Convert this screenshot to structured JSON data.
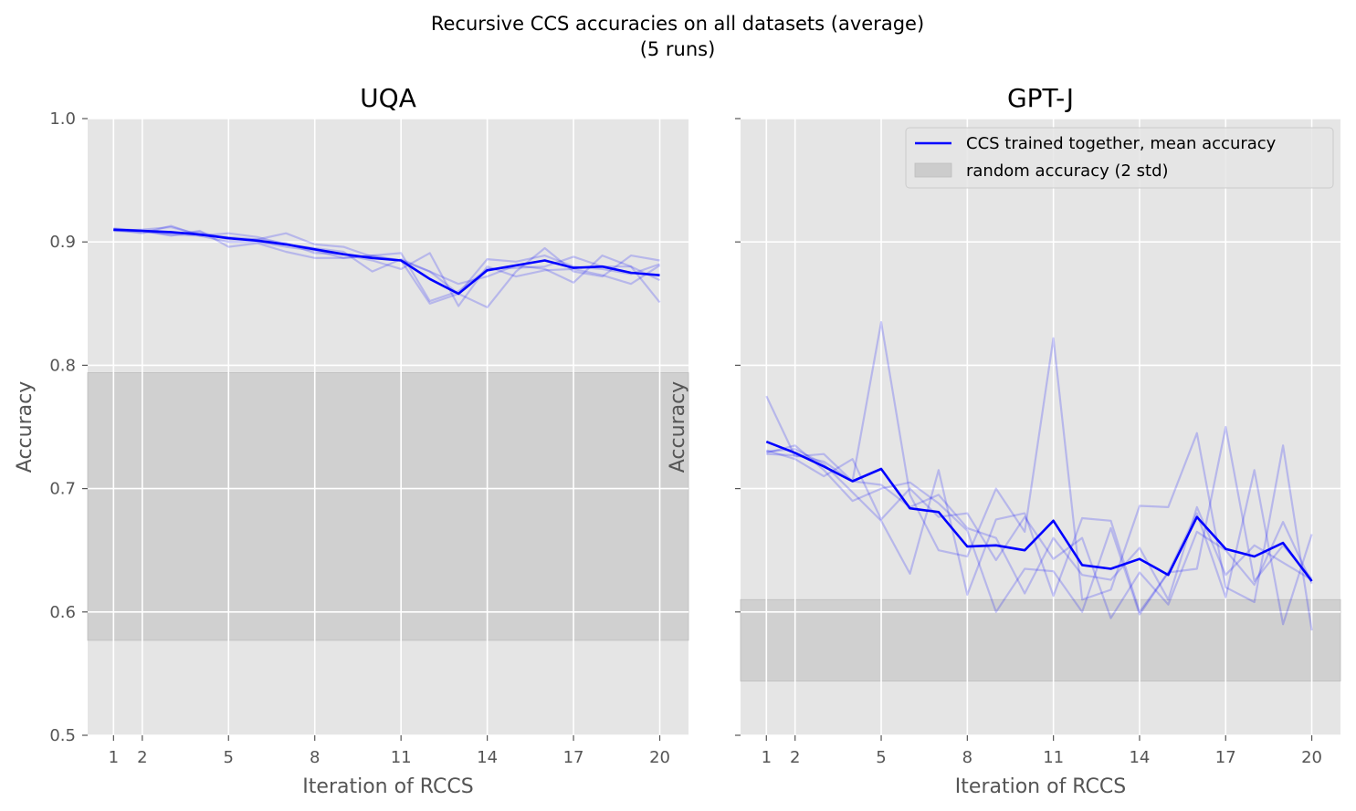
{
  "suptitle_line1": "Recursive CCS accuracies on all datasets (average)",
  "suptitle_line2": "(5 runs)",
  "colors": {
    "panel_bg": "#e5e5e5",
    "grid": "#ffffff",
    "band": "#cccccc",
    "mean_line": "#0000ff",
    "run_line": "#0000ff",
    "text": "#555555",
    "title": "#000000"
  },
  "legend": {
    "mean_label": "CCS trained together, mean accuracy",
    "band_label": "random accuracy (2 std)",
    "location": "upper-right"
  },
  "chart_data": [
    {
      "type": "line",
      "title": "UQA",
      "xlabel": "Iteration of RCCS",
      "ylabel": "Accuracy",
      "xlim": [
        0.1,
        21.0
      ],
      "ylim": [
        0.5,
        1.0
      ],
      "xticks": [
        1,
        2,
        5,
        8,
        11,
        14,
        17,
        20
      ],
      "yticks": [
        0.5,
        0.6,
        0.7,
        0.8,
        0.9,
        1.0
      ],
      "ytick_labels": [
        "0.5",
        "0.6",
        "0.7",
        "0.8",
        "0.9",
        "1.0"
      ],
      "x": [
        1,
        2,
        3,
        4,
        5,
        6,
        7,
        8,
        9,
        10,
        11,
        12,
        13,
        14,
        15,
        16,
        17,
        18,
        19,
        20
      ],
      "random_band": [
        0.577,
        0.794
      ],
      "mean": [
        0.91,
        0.909,
        0.908,
        0.906,
        0.903,
        0.901,
        0.898,
        0.894,
        0.89,
        0.887,
        0.885,
        0.87,
        0.858,
        0.877,
        0.881,
        0.885,
        0.879,
        0.88,
        0.875,
        0.873
      ],
      "runs": [
        {
          "name": "run 1",
          "values": [
            0.909,
            0.91,
            0.912,
            0.906,
            0.904,
            0.902,
            0.907,
            0.898,
            0.896,
            0.888,
            0.885,
            0.876,
            0.858,
            0.886,
            0.884,
            0.889,
            0.88,
            0.878,
            0.874,
            0.882
          ]
        },
        {
          "name": "run 2",
          "values": [
            0.911,
            0.909,
            0.906,
            0.905,
            0.9,
            0.9,
            0.896,
            0.893,
            0.887,
            0.889,
            0.891,
            0.852,
            0.86,
            0.878,
            0.879,
            0.88,
            0.888,
            0.88,
            0.88,
            0.869
          ]
        },
        {
          "name": "run 3",
          "values": [
            0.909,
            0.908,
            0.907,
            0.908,
            0.902,
            0.902,
            0.899,
            0.891,
            0.89,
            0.885,
            0.878,
            0.891,
            0.848,
            0.88,
            0.872,
            0.877,
            0.878,
            0.873,
            0.866,
            0.881
          ]
        },
        {
          "name": "run 4",
          "values": [
            0.91,
            0.907,
            0.913,
            0.905,
            0.907,
            0.904,
            0.898,
            0.895,
            0.892,
            0.876,
            0.886,
            0.876,
            0.866,
            0.872,
            0.881,
            0.878,
            0.867,
            0.889,
            0.88,
            0.851
          ]
        },
        {
          "name": "run 5",
          "values": [
            0.91,
            0.909,
            0.905,
            0.909,
            0.896,
            0.899,
            0.892,
            0.887,
            0.887,
            0.889,
            0.885,
            0.85,
            0.858,
            0.847,
            0.876,
            0.895,
            0.876,
            0.872,
            0.889,
            0.885
          ]
        }
      ]
    },
    {
      "type": "line",
      "title": "GPT-J",
      "xlabel": "Iteration of RCCS",
      "ylabel": "Accuracy",
      "xlim": [
        0.1,
        21.0
      ],
      "ylim": [
        0.5,
        1.0
      ],
      "xticks": [
        1,
        2,
        5,
        8,
        11,
        14,
        17,
        20
      ],
      "yticks": [
        0.5,
        0.6,
        0.7,
        0.8,
        0.9,
        1.0
      ],
      "ytick_labels": [
        "",
        "",
        "",
        "",
        "",
        ""
      ],
      "x": [
        1,
        2,
        3,
        4,
        5,
        6,
        7,
        8,
        9,
        10,
        11,
        12,
        13,
        14,
        15,
        16,
        17,
        18,
        19,
        20
      ],
      "random_band": [
        0.544,
        0.61
      ],
      "mean": [
        0.738,
        0.729,
        0.718,
        0.706,
        0.716,
        0.684,
        0.681,
        0.653,
        0.654,
        0.65,
        0.674,
        0.638,
        0.635,
        0.643,
        0.63,
        0.677,
        0.651,
        0.645,
        0.656,
        0.625
      ],
      "runs": [
        {
          "name": "run 1",
          "values": [
            0.775,
            0.726,
            0.728,
            0.706,
            0.835,
            0.695,
            0.65,
            0.645,
            0.7,
            0.665,
            0.822,
            0.61,
            0.618,
            0.686,
            0.685,
            0.745,
            0.62,
            0.608,
            0.735,
            0.585
          ]
        },
        {
          "name": "run 2",
          "values": [
            0.729,
            0.735,
            0.715,
            0.69,
            0.7,
            0.705,
            0.688,
            0.666,
            0.6,
            0.635,
            0.633,
            0.6,
            0.668,
            0.598,
            0.632,
            0.635,
            0.75,
            0.625,
            0.654,
            0.627
          ]
        },
        {
          "name": "run 3",
          "values": [
            0.73,
            0.732,
            0.72,
            0.697,
            0.674,
            0.631,
            0.715,
            0.614,
            0.675,
            0.68,
            0.613,
            0.676,
            0.674,
            0.6,
            0.632,
            0.68,
            0.612,
            0.715,
            0.59,
            0.663
          ]
        },
        {
          "name": "run 4",
          "values": [
            0.728,
            0.727,
            0.722,
            0.706,
            0.703,
            0.685,
            0.695,
            0.668,
            0.66,
            0.615,
            0.66,
            0.63,
            0.626,
            0.652,
            0.61,
            0.685,
            0.63,
            0.654,
            0.64,
            0.626
          ]
        },
        {
          "name": "run 5",
          "values": [
            0.731,
            0.724,
            0.71,
            0.724,
            0.675,
            0.7,
            0.677,
            0.68,
            0.642,
            0.677,
            0.643,
            0.66,
            0.595,
            0.632,
            0.606,
            0.665,
            0.65,
            0.622,
            0.673,
            0.623
          ]
        }
      ]
    }
  ]
}
